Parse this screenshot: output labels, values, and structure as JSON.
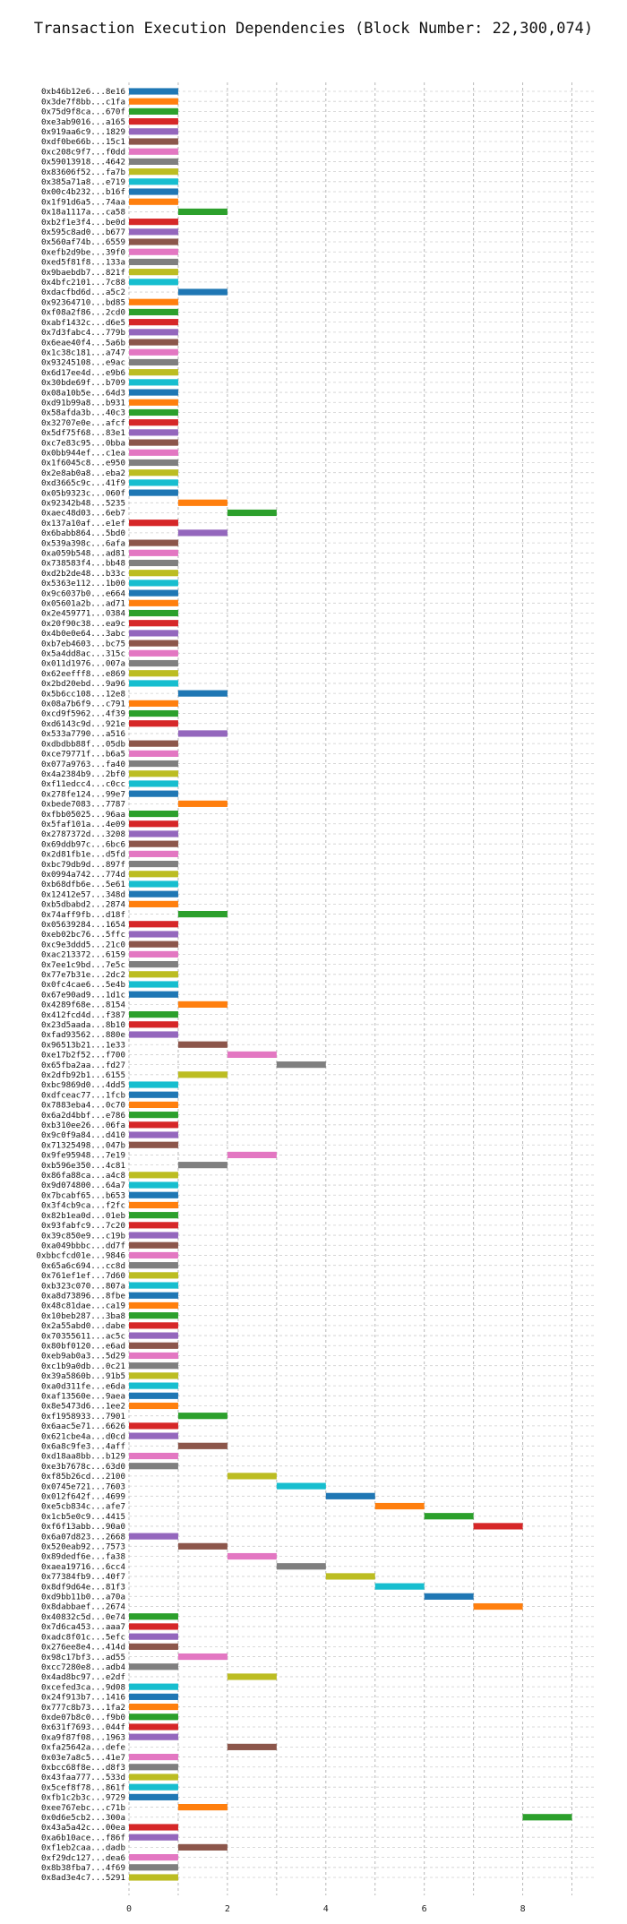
{
  "chart_data": {
    "type": "bar",
    "orientation": "horizontal",
    "title": "Transaction Execution Dependencies (Block Number: 22,300,074)",
    "xlabel": "",
    "ylabel": "",
    "xlim": [
      0,
      9.5
    ],
    "xticks": [
      0,
      2,
      4,
      6,
      8
    ],
    "grid": true,
    "legend": "none",
    "colors": [
      "#1f77b4",
      "#ff7f0e",
      "#2ca02c",
      "#d62728",
      "#9467bd",
      "#8c564b",
      "#e377c2",
      "#7f7f7f",
      "#bcbd22",
      "#17becf"
    ],
    "transactions": [
      [
        "0xb46b12e6...8e16",
        0,
        1
      ],
      [
        "0x3de7f8bb...c1fa",
        0,
        1
      ],
      [
        "0x75d9f8ca...670f",
        0,
        1
      ],
      [
        "0xe3ab9016...a165",
        0,
        1
      ],
      [
        "0x919aa6c9...1829",
        0,
        1
      ],
      [
        "0xdf0be66b...15c1",
        0,
        1
      ],
      [
        "0xc208c9f7...f0dd",
        0,
        1
      ],
      [
        "0x59013918...4642",
        0,
        1
      ],
      [
        "0x83606f52...fa7b",
        0,
        1
      ],
      [
        "0x385a71a8...e719",
        0,
        1
      ],
      [
        "0x00c4b232...b16f",
        0,
        1
      ],
      [
        "0x1f91d6a5...74aa",
        0,
        1
      ],
      [
        "0x18a1117a...ca58",
        1,
        2
      ],
      [
        "0xb2f1e3f4...be0d",
        0,
        1
      ],
      [
        "0x595c8ad0...b677",
        0,
        1
      ],
      [
        "0x560af74b...6559",
        0,
        1
      ],
      [
        "0xefb2d9be...39f0",
        0,
        1
      ],
      [
        "0xed5f81f8...133a",
        0,
        1
      ],
      [
        "0x9baebdb7...821f",
        0,
        1
      ],
      [
        "0x4bfc2101...7c88",
        0,
        1
      ],
      [
        "0xdacfbd6d...a5c2",
        1,
        2
      ],
      [
        "0x92364710...bd85",
        0,
        1
      ],
      [
        "0xf08a2f86...2cd0",
        0,
        1
      ],
      [
        "0xabf1432c...d6e5",
        0,
        1
      ],
      [
        "0x7d3fabc4...779b",
        0,
        1
      ],
      [
        "0x6eae40f4...5a6b",
        0,
        1
      ],
      [
        "0x1c38c181...a747",
        0,
        1
      ],
      [
        "0x93245108...e9ac",
        0,
        1
      ],
      [
        "0x6d17ee4d...e9b6",
        0,
        1
      ],
      [
        "0x30bde69f...b709",
        0,
        1
      ],
      [
        "0x08a10b5e...64d3",
        0,
        1
      ],
      [
        "0xd91b99a8...b931",
        0,
        1
      ],
      [
        "0x58afda3b...40c3",
        0,
        1
      ],
      [
        "0x32707e0e...afcf",
        0,
        1
      ],
      [
        "0x5df75f68...83e1",
        0,
        1
      ],
      [
        "0xc7e83c95...0bba",
        0,
        1
      ],
      [
        "0x0bb944ef...c1ea",
        0,
        1
      ],
      [
        "0x1f6045c8...e950",
        0,
        1
      ],
      [
        "0x2e8ab0a8...eba2",
        0,
        1
      ],
      [
        "0xd3665c9c...41f9",
        0,
        1
      ],
      [
        "0x05b9323c...060f",
        0,
        1
      ],
      [
        "0x92342b48...5235",
        1,
        2
      ],
      [
        "0xaec48d03...6eb7",
        2,
        3
      ],
      [
        "0x137a10af...e1ef",
        0,
        1
      ],
      [
        "0x6babb864...5bd0",
        1,
        2
      ],
      [
        "0x539a398c...6afa",
        0,
        1
      ],
      [
        "0xa059b548...ad81",
        0,
        1
      ],
      [
        "0x738583f4...bb48",
        0,
        1
      ],
      [
        "0xd2b2de48...b33c",
        0,
        1
      ],
      [
        "0x5363e112...1b00",
        0,
        1
      ],
      [
        "0x9c6037b0...e664",
        0,
        1
      ],
      [
        "0x05601a2b...ad71",
        0,
        1
      ],
      [
        "0x2e459771...0384",
        0,
        1
      ],
      [
        "0x20f90c38...ea9c",
        0,
        1
      ],
      [
        "0x4b0e0e64...3abc",
        0,
        1
      ],
      [
        "0xb7eb4603...bc75",
        0,
        1
      ],
      [
        "0x5a4dd8ac...315c",
        0,
        1
      ],
      [
        "0x011d1976...007a",
        0,
        1
      ],
      [
        "0x62eefff8...e869",
        0,
        1
      ],
      [
        "0x2bd20ebd...9a96",
        0,
        1
      ],
      [
        "0x5b6cc108...12e8",
        1,
        2
      ],
      [
        "0x08a7b6f9...c791",
        0,
        1
      ],
      [
        "0xcd9f5962...4f39",
        0,
        1
      ],
      [
        "0xd6143c9d...921e",
        0,
        1
      ],
      [
        "0x533a7790...a516",
        1,
        2
      ],
      [
        "0xdbdbb88f...05db",
        0,
        1
      ],
      [
        "0xce79771f...b6a5",
        0,
        1
      ],
      [
        "0x077a9763...fa40",
        0,
        1
      ],
      [
        "0x4a2384b9...2bf0",
        0,
        1
      ],
      [
        "0xf11edcc4...c0cc",
        0,
        1
      ],
      [
        "0x278fe124...99e7",
        0,
        1
      ],
      [
        "0xbede7083...7787",
        1,
        2
      ],
      [
        "0xfbb05025...96aa",
        0,
        1
      ],
      [
        "0x5faf101a...4e09",
        0,
        1
      ],
      [
        "0x2787372d...3208",
        0,
        1
      ],
      [
        "0x69ddb97c...6bc6",
        0,
        1
      ],
      [
        "0x2d81fb1e...d5fd",
        0,
        1
      ],
      [
        "0xbc79db9d...897f",
        0,
        1
      ],
      [
        "0x0994a742...774d",
        0,
        1
      ],
      [
        "0xb68dfb6e...5e61",
        0,
        1
      ],
      [
        "0x12412e57...348d",
        0,
        1
      ],
      [
        "0xb5dbabd2...2874",
        0,
        1
      ],
      [
        "0x74aff9fb...d18f",
        1,
        2
      ],
      [
        "0x05639284...1654",
        0,
        1
      ],
      [
        "0xeb02bc76...5ffc",
        0,
        1
      ],
      [
        "0xc9e3ddd5...21c0",
        0,
        1
      ],
      [
        "0xac213372...6159",
        0,
        1
      ],
      [
        "0x7ee1c9bd...7e5c",
        0,
        1
      ],
      [
        "0x77e7b31e...2dc2",
        0,
        1
      ],
      [
        "0x0fc4cae6...5e4b",
        0,
        1
      ],
      [
        "0x67e90ad9...1d1c",
        0,
        1
      ],
      [
        "0x4289f68e...8154",
        1,
        2
      ],
      [
        "0x412fcd4d...f387",
        0,
        1
      ],
      [
        "0x23d5aada...8b10",
        0,
        1
      ],
      [
        "0xfad93562...880e",
        0,
        1
      ],
      [
        "0x96513b21...1e33",
        1,
        2
      ],
      [
        "0xe17b2f52...f700",
        2,
        3
      ],
      [
        "0x65fba2aa...fd27",
        3,
        4
      ],
      [
        "0x2dfb92b1...6155",
        1,
        2
      ],
      [
        "0xbc9869d0...4dd5",
        0,
        1
      ],
      [
        "0xdfceac77...1fcb",
        0,
        1
      ],
      [
        "0x7883eba4...0c70",
        0,
        1
      ],
      [
        "0x6a2d4bbf...e786",
        0,
        1
      ],
      [
        "0xb310ee26...06fa",
        0,
        1
      ],
      [
        "0x9c0f9a84...d410",
        0,
        1
      ],
      [
        "0x71325498...047b",
        0,
        1
      ],
      [
        "0x9fe95948...7e19",
        2,
        3
      ],
      [
        "0xb596e350...4c81",
        1,
        2
      ],
      [
        "0x86fa88ca...a4c8",
        0,
        1
      ],
      [
        "0x9d074800...64a7",
        0,
        1
      ],
      [
        "0x7bcabf65...b653",
        0,
        1
      ],
      [
        "0x3f4cb9ca...f2fc",
        0,
        1
      ],
      [
        "0x82b1ea0d...01eb",
        0,
        1
      ],
      [
        "0x93fabfc9...7c20",
        0,
        1
      ],
      [
        "0x39c850e9...c19b",
        0,
        1
      ],
      [
        "0xa049bbbc...dd7f",
        0,
        1
      ],
      [
        "0xbbcfcd01e...9846",
        0,
        1
      ],
      [
        "0x65a6c694...cc8d",
        0,
        1
      ],
      [
        "0x761ef1ef...7d60",
        0,
        1
      ],
      [
        "0xb323c070...807a",
        0,
        1
      ],
      [
        "0xa8d73896...8fbe",
        0,
        1
      ],
      [
        "0x48c81dae...ca19",
        0,
        1
      ],
      [
        "0x10beb287...3ba8",
        0,
        1
      ],
      [
        "0x2a55abd0...dabe",
        0,
        1
      ],
      [
        "0x70355611...ac5c",
        0,
        1
      ],
      [
        "0x80bf0120...e6ad",
        0,
        1
      ],
      [
        "0xeb9ab0a3...5d29",
        0,
        1
      ],
      [
        "0xc1b9a0db...0c21",
        0,
        1
      ],
      [
        "0x39a5860b...91b5",
        0,
        1
      ],
      [
        "0xa0d311fe...e6da",
        0,
        1
      ],
      [
        "0xaf13560e...9aea",
        0,
        1
      ],
      [
        "0x8e5473d6...1ee2",
        0,
        1
      ],
      [
        "0xf1958933...7901",
        1,
        2
      ],
      [
        "0x6aac5e71...6626",
        0,
        1
      ],
      [
        "0x621cbe4a...d0cd",
        0,
        1
      ],
      [
        "0x6a8c9fe3...4aff",
        1,
        2
      ],
      [
        "0xd18aa8bb...b129",
        0,
        1
      ],
      [
        "0xe3b7678c...63d0",
        0,
        1
      ],
      [
        "0xf85b26cd...2100",
        2,
        3
      ],
      [
        "0x0745e721...7603",
        3,
        4
      ],
      [
        "0x012f642f...4699",
        4,
        5
      ],
      [
        "0xe5cb834c...afe7",
        5,
        6
      ],
      [
        "0x1cb5e0c9...4415",
        6,
        7
      ],
      [
        "0xf6f13abb...90a0",
        7,
        8
      ],
      [
        "0x6a07d823...2668",
        0,
        1
      ],
      [
        "0x520eab92...7573",
        1,
        2
      ],
      [
        "0x89dedf6e...fa38",
        2,
        3
      ],
      [
        "0xaea19716...6cc4",
        3,
        4
      ],
      [
        "0x77384fb9...40f7",
        4,
        5
      ],
      [
        "0x8df9d64e...81f3",
        5,
        6
      ],
      [
        "0xd9bb11b0...a70a",
        6,
        7
      ],
      [
        "0x8dabbaef...2674",
        7,
        8
      ],
      [
        "0x40832c5d...0e74",
        0,
        1
      ],
      [
        "0x7d6ca453...aaa7",
        0,
        1
      ],
      [
        "0xadc8f01c...5efc",
        0,
        1
      ],
      [
        "0x276ee8e4...414d",
        0,
        1
      ],
      [
        "0x98c17bf3...ad55",
        1,
        2
      ],
      [
        "0xcc7280e8...adb4",
        0,
        1
      ],
      [
        "0x4ad8bc97...e2df",
        2,
        3
      ],
      [
        "0xcefed3ca...9d08",
        0,
        1
      ],
      [
        "0x24f913b7...1416",
        0,
        1
      ],
      [
        "0x777c8b73...1fa2",
        0,
        1
      ],
      [
        "0xde07b8c0...f9b0",
        0,
        1
      ],
      [
        "0x631f7693...044f",
        0,
        1
      ],
      [
        "0xa9f87f08...1963",
        0,
        1
      ],
      [
        "0xfa25642a...defe",
        2,
        3
      ],
      [
        "0x03e7a8c5...41e7",
        0,
        1
      ],
      [
        "0xbcc68f8e...d8f3",
        0,
        1
      ],
      [
        "0x43faa777...533d",
        0,
        1
      ],
      [
        "0x5cef8f78...861f",
        0,
        1
      ],
      [
        "0xfb1c2b3c...9729",
        0,
        1
      ],
      [
        "0xee767ebc...c71b",
        1,
        2
      ],
      [
        "0x0d6e5cb2...300a",
        8,
        9
      ],
      [
        "0x43a5a42c...00ea",
        0,
        1
      ],
      [
        "0xa6b10ace...f86f",
        0,
        1
      ],
      [
        "0xf1eb2caa...dadb",
        1,
        2
      ],
      [
        "0xf29dc127...dea6",
        0,
        1
      ],
      [
        "0x8b38fba7...4f69",
        0,
        1
      ],
      [
        "0x8ad3e4c7...5291",
        0,
        1
      ]
    ]
  }
}
